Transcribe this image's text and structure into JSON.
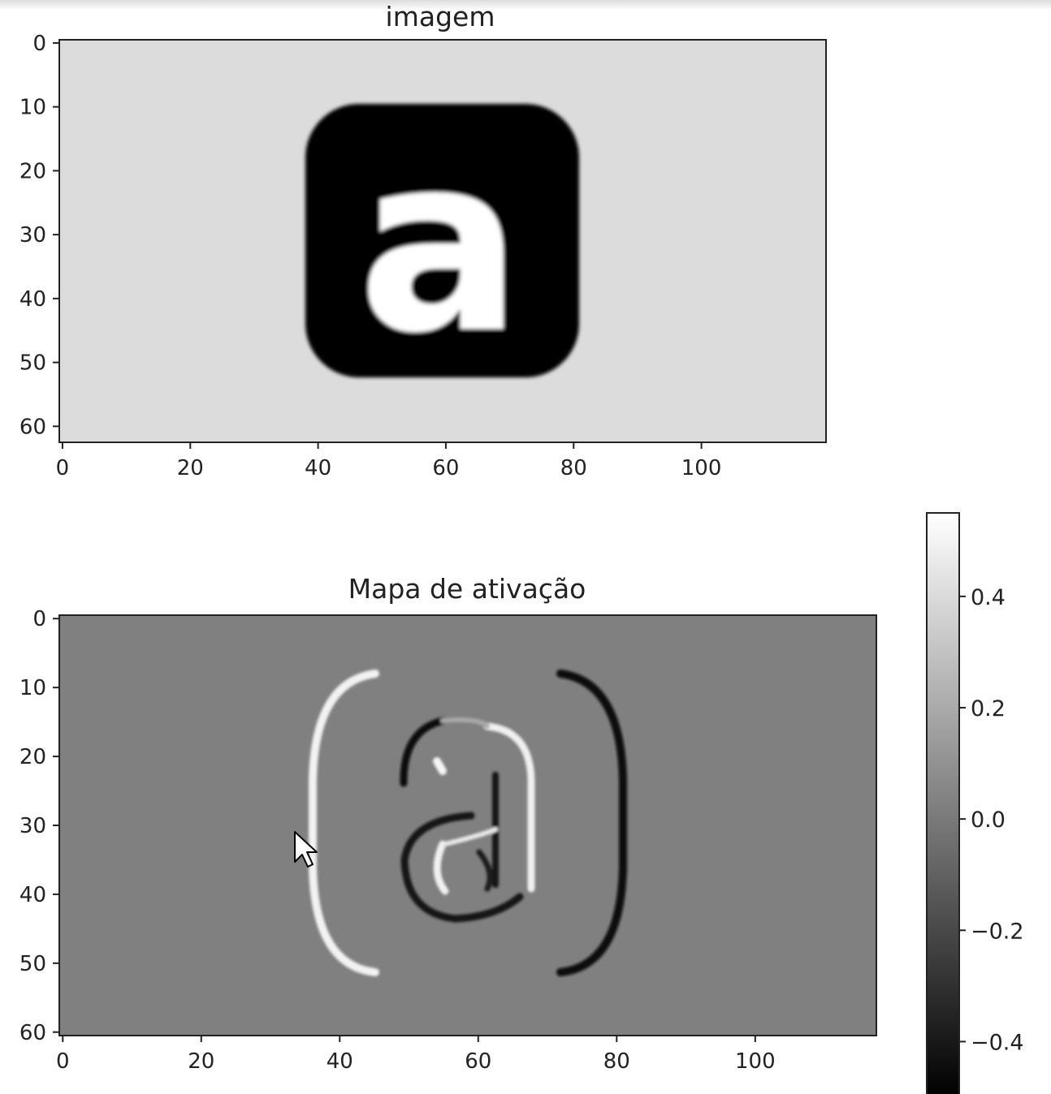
{
  "chart_data": [
    {
      "type": "heatmap",
      "title": "imagem",
      "colormap": "gray",
      "x_ticks": [
        0,
        20,
        40,
        60,
        80,
        100
      ],
      "y_ticks": [
        0,
        10,
        20,
        30,
        40,
        50,
        60
      ],
      "xlim": [
        -0.5,
        119.5
      ],
      "ylim": [
        62.5,
        -0.5
      ],
      "background_color": "#dcdcdc",
      "content": {
        "rounded_square": {
          "x": [
            38,
            81
          ],
          "y": [
            9.5,
            52.5
          ],
          "color": "#000000"
        },
        "letter": {
          "text": "a",
          "color": "#ffffff"
        }
      }
    },
    {
      "type": "heatmap",
      "title": "Mapa de ativação",
      "colormap": "gray",
      "x_ticks": [
        0,
        20,
        40,
        60,
        80,
        100
      ],
      "y_ticks": [
        0,
        10,
        20,
        30,
        40,
        50,
        60
      ],
      "xlim": [
        -0.5,
        117.5
      ],
      "ylim": [
        60.5,
        -0.5
      ],
      "background_value": 0.0,
      "colorbar": {
        "vmin": -0.5,
        "vmax": 0.55,
        "ticks": [
          0.4,
          0.2,
          0.0,
          -0.2,
          -0.4
        ],
        "tick_labels": [
          "0.4",
          "0.2",
          "0.0",
          "−0.2",
          "−0.4"
        ]
      }
    }
  ],
  "colors": {
    "background": "#ffffff",
    "axis": "#222222",
    "activation_zero": "#808080"
  }
}
